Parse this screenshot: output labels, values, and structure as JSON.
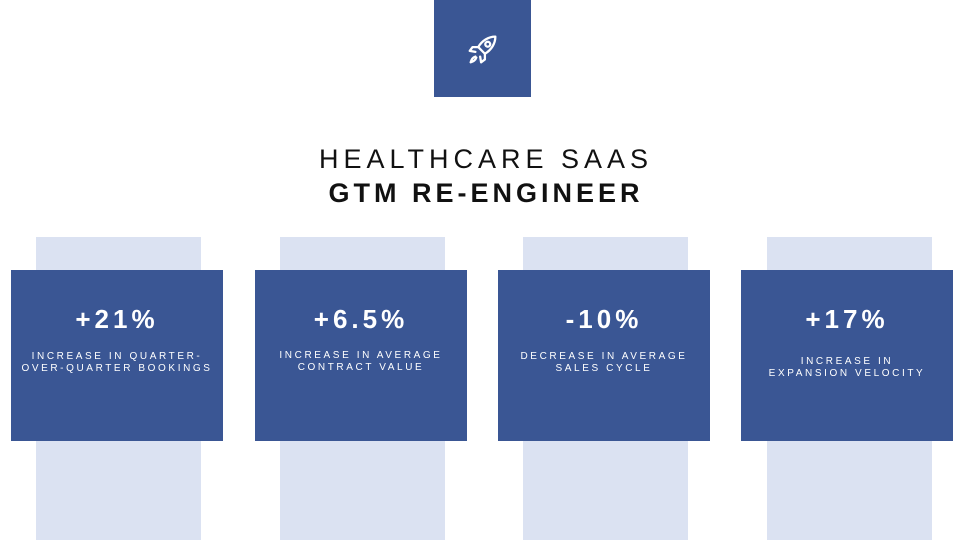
{
  "icon": {
    "name": "rocket-icon",
    "background": "#3a5694"
  },
  "title": {
    "line1": "HEALTHCARE SAAS",
    "line2": "GTM RE-ENGINEER"
  },
  "colors": {
    "accent": "#3a5694",
    "strip": "#dbe2f2",
    "text": "#111111"
  },
  "stats": [
    {
      "value": "+21%",
      "description": "INCREASE IN QUARTER-\nOVER-QUARTER BOOKINGS"
    },
    {
      "value": "+6.5%",
      "description": "INCREASE IN AVERAGE\nCONTRACT VALUE"
    },
    {
      "value": "-10%",
      "description": "DECREASE IN AVERAGE\nSALES CYCLE"
    },
    {
      "value": "+17%",
      "description": "INCREASE IN\nEXPANSION VELOCITY"
    }
  ]
}
